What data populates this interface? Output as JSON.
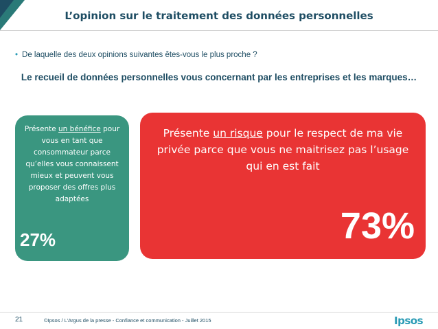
{
  "header": {
    "title": "L’opinion sur le traitement des données personnelles"
  },
  "question": {
    "bullet": "•",
    "text": "De laquelle des deux opinions suivantes êtes-vous le plus proche ?"
  },
  "statement": "Le recueil de données personnelles vous concernant par les entreprises et les marques…",
  "option_benefit": {
    "prefix": "Présente ",
    "underlined": "un bénéfice",
    "suffix": " pour vous en tant que consommateur parce qu’elles vous connaissent mieux et peuvent vous proposer des offres plus adaptées",
    "percent": "27%",
    "color": "#3a9680"
  },
  "option_risk": {
    "prefix": "Présente ",
    "underlined": "un risque",
    "suffix": " pour le respect de ma vie privée parce que vous ne maitrisez pas l’usage qui en est fait",
    "percent": "73%",
    "color": "#e93434"
  },
  "footer": {
    "page_number": "21",
    "text": "©Ipsos / L’Argus de la presse - Confiance et communication - Juillet 2015",
    "logo": "Ipsos"
  }
}
